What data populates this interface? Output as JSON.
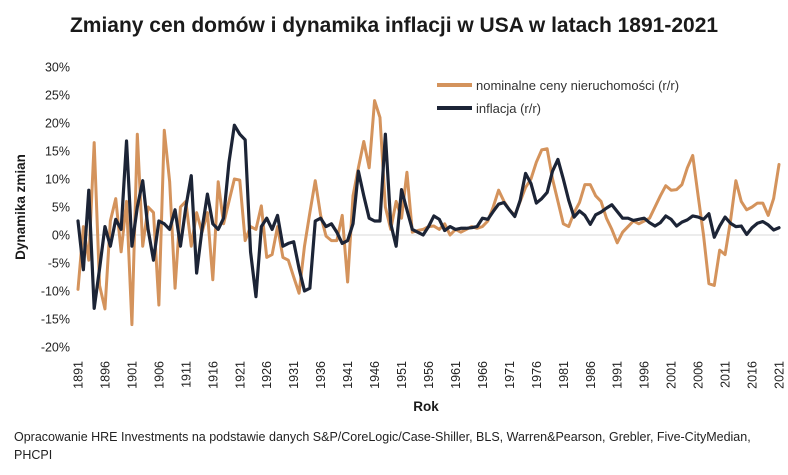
{
  "chart_data": {
    "type": "line",
    "title": "Zmiany cen domów i dynamika inflacji w USA w latach 1891-2021",
    "xlabel": "Rok",
    "ylabel": "Dynamika zmian",
    "ylim": [
      -0.2,
      0.3
    ],
    "xlim": [
      1891,
      2021
    ],
    "y_ticks": [
      "-20%",
      "-15%",
      "-10%",
      "-5%",
      "0%",
      "5%",
      "10%",
      "15%",
      "20%",
      "25%",
      "30%"
    ],
    "x_ticks": [
      "1891",
      "1896",
      "1901",
      "1906",
      "1911",
      "1916",
      "1921",
      "1926",
      "1931",
      "1936",
      "1941",
      "1946",
      "1951",
      "1956",
      "1961",
      "1966",
      "1971",
      "1976",
      "1981",
      "1986",
      "1991",
      "1996",
      "2001",
      "2006",
      "2011",
      "2016",
      "2021"
    ],
    "grid": false,
    "legend_position": "top-right",
    "series": [
      {
        "name": "nominalne ceny nieruchomości (r/r)",
        "color": "#d4935c",
        "x": [
          1891,
          1892,
          1893,
          1894,
          1895,
          1896,
          1897,
          1898,
          1899,
          1900,
          1901,
          1902,
          1903,
          1904,
          1905,
          1906,
          1907,
          1908,
          1909,
          1910,
          1911,
          1912,
          1913,
          1914,
          1915,
          1916,
          1917,
          1918,
          1919,
          1920,
          1921,
          1922,
          1923,
          1924,
          1925,
          1926,
          1927,
          1928,
          1929,
          1930,
          1931,
          1932,
          1933,
          1934,
          1935,
          1936,
          1937,
          1938,
          1939,
          1940,
          1941,
          1942,
          1943,
          1944,
          1945,
          1946,
          1947,
          1948,
          1949,
          1950,
          1951,
          1952,
          1953,
          1954,
          1955,
          1956,
          1957,
          1958,
          1959,
          1960,
          1961,
          1962,
          1963,
          1964,
          1965,
          1966,
          1967,
          1968,
          1969,
          1970,
          1971,
          1972,
          1973,
          1974,
          1975,
          1976,
          1977,
          1978,
          1979,
          1980,
          1981,
          1982,
          1983,
          1984,
          1985,
          1986,
          1987,
          1988,
          1989,
          1990,
          1991,
          1992,
          1993,
          1994,
          1995,
          1996,
          1997,
          1998,
          1999,
          2000,
          2001,
          2002,
          2003,
          2004,
          2005,
          2006,
          2007,
          2008,
          2009,
          2010,
          2011,
          2012,
          2013,
          2014,
          2015,
          2016,
          2017,
          2018,
          2019,
          2020,
          2021
        ],
        "values": [
          -0.097,
          0.015,
          -0.045,
          0.165,
          -0.09,
          -0.132,
          0.025,
          0.065,
          -0.03,
          0.06,
          -0.16,
          0.18,
          -0.02,
          0.05,
          0.04,
          -0.125,
          0.187,
          0.095,
          -0.095,
          0.05,
          0.06,
          -0.02,
          0.04,
          0.005,
          0.04,
          -0.08,
          0.095,
          0.02,
          0.06,
          0.1,
          0.098,
          -0.01,
          0.015,
          0.01,
          0.052,
          -0.04,
          -0.035,
          0.015,
          -0.04,
          -0.045,
          -0.075,
          -0.104,
          -0.02,
          0.04,
          0.097,
          0.035,
          -0.002,
          -0.01,
          -0.01,
          0.035,
          -0.084,
          0.07,
          0.12,
          0.167,
          0.12,
          0.24,
          0.21,
          0.05,
          0.01,
          0.06,
          0.03,
          0.112,
          0.005,
          0.008,
          0.01,
          0.015,
          0.016,
          0.01,
          0.02,
          0.0,
          0.01,
          0.005,
          0.01,
          0.015,
          0.012,
          0.015,
          0.025,
          0.05,
          0.08,
          0.06,
          0.045,
          0.035,
          0.06,
          0.085,
          0.1,
          0.13,
          0.152,
          0.154,
          0.1,
          0.06,
          0.02,
          0.015,
          0.04,
          0.058,
          0.09,
          0.09,
          0.07,
          0.06,
          0.03,
          0.01,
          -0.014,
          0.005,
          0.015,
          0.025,
          0.02,
          0.025,
          0.03,
          0.05,
          0.07,
          0.088,
          0.08,
          0.081,
          0.09,
          0.12,
          0.142,
          0.07,
          0.0,
          -0.087,
          -0.09,
          -0.027,
          -0.035,
          0.025,
          0.097,
          0.06,
          0.045,
          0.05,
          0.057,
          0.057,
          0.035,
          0.065,
          0.126
        ]
      },
      {
        "name": "inflacja (r/r)",
        "color": "#1c2436",
        "x": [
          1891,
          1892,
          1893,
          1894,
          1895,
          1896,
          1897,
          1898,
          1899,
          1900,
          1901,
          1902,
          1903,
          1904,
          1905,
          1906,
          1907,
          1908,
          1909,
          1910,
          1911,
          1912,
          1913,
          1914,
          1915,
          1916,
          1917,
          1918,
          1919,
          1920,
          1921,
          1922,
          1923,
          1924,
          1925,
          1926,
          1927,
          1928,
          1929,
          1930,
          1931,
          1932,
          1933,
          1934,
          1935,
          1936,
          1937,
          1938,
          1939,
          1940,
          1941,
          1942,
          1943,
          1944,
          1945,
          1946,
          1947,
          1948,
          1949,
          1950,
          1951,
          1952,
          1953,
          1954,
          1955,
          1956,
          1957,
          1958,
          1959,
          1960,
          1961,
          1962,
          1963,
          1964,
          1965,
          1966,
          1967,
          1968,
          1969,
          1970,
          1971,
          1972,
          1973,
          1974,
          1975,
          1976,
          1977,
          1978,
          1979,
          1980,
          1981,
          1982,
          1983,
          1984,
          1985,
          1986,
          1987,
          1988,
          1989,
          1990,
          1991,
          1992,
          1993,
          1994,
          1995,
          1996,
          1997,
          1998,
          1999,
          2000,
          2001,
          2002,
          2003,
          2004,
          2005,
          2006,
          2007,
          2008,
          2009,
          2010,
          2011,
          2012,
          2013,
          2014,
          2015,
          2016,
          2017,
          2018,
          2019,
          2020,
          2021
        ],
        "values": [
          0.025,
          -0.062,
          0.08,
          -0.131,
          -0.06,
          0.015,
          -0.02,
          0.028,
          0.01,
          0.168,
          -0.02,
          0.05,
          0.097,
          0.01,
          -0.045,
          0.025,
          0.02,
          0.01,
          0.045,
          -0.02,
          0.05,
          0.106,
          -0.068,
          0.01,
          0.073,
          0.02,
          0.01,
          0.03,
          0.13,
          0.196,
          0.18,
          0.17,
          -0.03,
          -0.11,
          0.015,
          0.03,
          0.01,
          0.035,
          -0.02,
          -0.015,
          -0.012,
          -0.06,
          -0.1,
          -0.095,
          0.025,
          0.03,
          0.015,
          0.02,
          0.005,
          -0.015,
          -0.01,
          0.02,
          0.114,
          0.07,
          0.03,
          0.025,
          0.025,
          0.18,
          0.02,
          -0.02,
          0.081,
          0.045,
          0.01,
          0.005,
          0.0,
          0.015,
          0.034,
          0.028,
          0.008,
          0.015,
          0.01,
          0.012,
          0.012,
          0.013,
          0.015,
          0.03,
          0.028,
          0.042,
          0.055,
          0.058,
          0.045,
          0.033,
          0.062,
          0.11,
          0.092,
          0.057,
          0.065,
          0.076,
          0.114,
          0.135,
          0.1,
          0.062,
          0.032,
          0.043,
          0.035,
          0.019,
          0.036,
          0.041,
          0.048,
          0.054,
          0.042,
          0.03,
          0.03,
          0.026,
          0.028,
          0.03,
          0.022,
          0.016,
          0.022,
          0.034,
          0.028,
          0.016,
          0.023,
          0.027,
          0.034,
          0.032,
          0.028,
          0.038,
          -0.004,
          0.016,
          0.032,
          0.021,
          0.015,
          0.016,
          0.001,
          0.013,
          0.021,
          0.024,
          0.018,
          0.009,
          0.013
        ]
      }
    ]
  },
  "source": "Opracowanie HRE Investments na podstawie danych S&P/CoreLogic/Case-Shiller, BLS, Warren&Pearson, Grebler, Five-CityMedian, PHCPI"
}
